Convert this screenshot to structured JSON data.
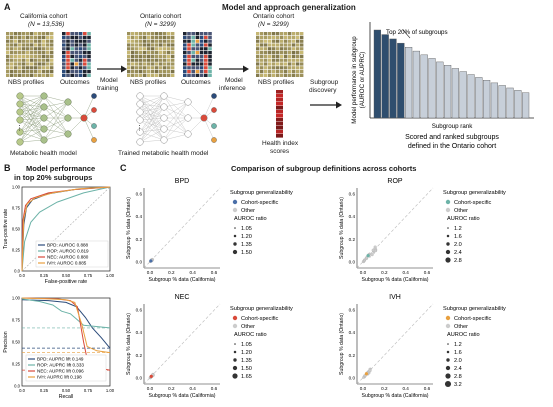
{
  "panel_a": {
    "letter": "A",
    "title": "Model and approach generalization",
    "california": {
      "label": "California cohort",
      "n_label": "(N = 13,536)"
    },
    "ontario_1": {
      "label": "Ontario cohort",
      "n_label": "(N = 3299)"
    },
    "ontario_2": {
      "label": "Ontario cohort",
      "n_label": "(N = 3299)"
    },
    "nbs_profiles": "NBS profiles",
    "outcomes": "Outcomes",
    "metabolic_model": "Metabolic health model",
    "model_training": [
      "Model",
      "training"
    ],
    "trained_model": "Trained metabolic health model",
    "model_inference": [
      "Model",
      "inference"
    ],
    "health_index": [
      "Health index",
      "scores"
    ],
    "subgroup_discovery": [
      "Subgroup",
      "discovery"
    ],
    "ranked_chart": {
      "ylabel": [
        "Model performance in subgroup",
        "(AUROC or AUPRC)"
      ],
      "xlabel": "Subgroup rank",
      "annotation": "Top 20% of subgroups",
      "caption": [
        "Scored and ranked subgroups",
        "defined in the Ontario cohort"
      ],
      "highlight_color": "#2f4e6e",
      "rest_color": "#c7cfd9"
    }
  },
  "panel_b": {
    "letter": "B",
    "title": [
      "Model performance",
      "in top 20% subgroups"
    ],
    "roc": {
      "xlabel": "False-positive rate",
      "ylabel": "True-positive rate",
      "ticks": [
        "0.0",
        "0.25",
        "0.50",
        "0.75",
        "1.00"
      ],
      "legend": [
        {
          "label": "BPD: AUROC 0.888",
          "color": "#2b4b7a"
        },
        {
          "label": "ROP: AUROC 0.819",
          "color": "#6db3a8"
        },
        {
          "label": "NEC: AUROC 0.880",
          "color": "#d94a3a"
        },
        {
          "label": "IVH: AUROC 0.885",
          "color": "#e8a040"
        }
      ]
    },
    "pr": {
      "xlabel": "Recall",
      "ylabel": "Precision",
      "ticks": [
        "0.0",
        "0.25",
        "0.50",
        "0.75",
        "1.00"
      ],
      "legend": [
        {
          "label": "BPD: AUPRC lift 0.149",
          "color": "#2b4b7a"
        },
        {
          "label": "ROP: AUPRC lift 0.333",
          "color": "#6db3a8"
        },
        {
          "label": "NEC: AUPRC lift 0.096",
          "color": "#d94a3a"
        },
        {
          "label": "IVH: AUPRC lift 0.198",
          "color": "#e8a040"
        }
      ]
    }
  },
  "panel_c": {
    "letter": "C",
    "title": "Comparison of subgroup definitions across cohorts",
    "xlabel": "Subgroup % data (California)",
    "ylabel": "Subgroup % data (Ontario)",
    "ticks": [
      "0.0",
      "0.2",
      "0.4",
      "0.6"
    ],
    "legend_title": "Subgroup generalizability",
    "other_label": "Other",
    "auroc_ratio": "AUROC ratio",
    "plots": [
      {
        "title": "BPD",
        "specific_label": "Cohort-specific",
        "color": "#4a6fa8",
        "sizes": [
          "1.05",
          "1.20",
          "1.35",
          "1.50"
        ]
      },
      {
        "title": "ROP",
        "specific_label": "Cohort-specific",
        "color": "#6db3a8",
        "sizes": [
          "1.2",
          "1.6",
          "2.0",
          "2.4",
          "2.8"
        ]
      },
      {
        "title": "NEC",
        "specific_label": "Cohort-specific",
        "color": "#d94a3a",
        "sizes": [
          "1.05",
          "1.20",
          "1.35",
          "1.50",
          "1.65"
        ]
      },
      {
        "title": "IVH",
        "specific_label": "Cohort-specific",
        "color": "#e8a040",
        "sizes": [
          "1.2",
          "1.6",
          "2.0",
          "2.4",
          "2.8",
          "3.2"
        ]
      }
    ]
  }
}
